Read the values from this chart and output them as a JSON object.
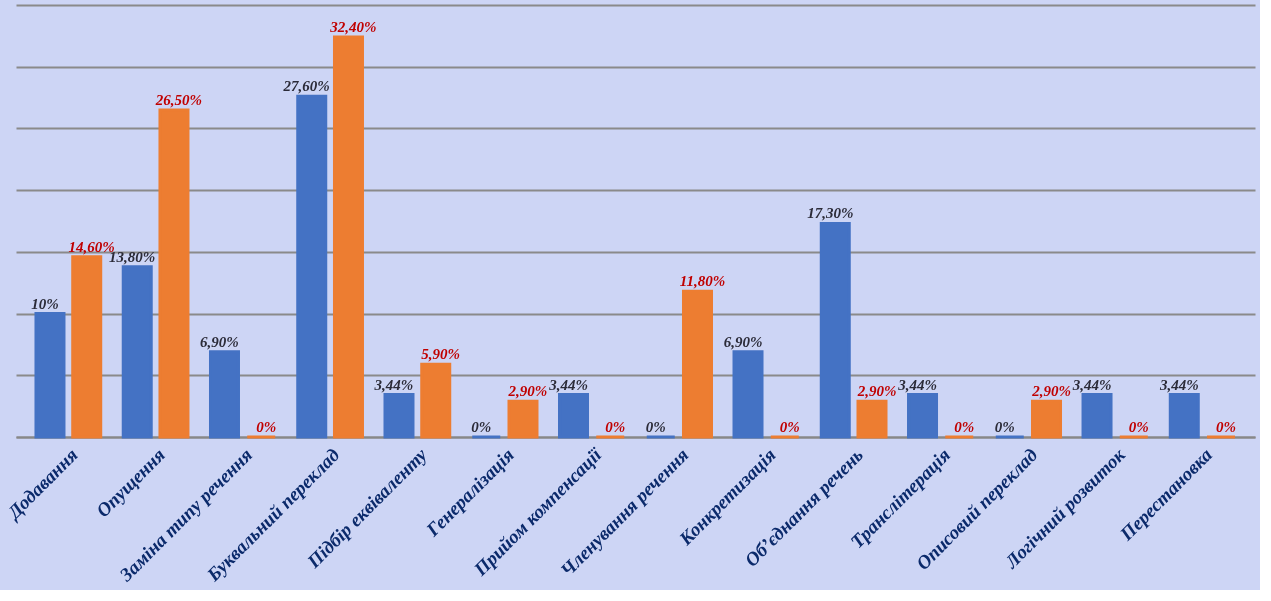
{
  "chart_data": {
    "type": "bar",
    "categories": [
      "Додавання",
      "Опущення",
      "Заміна типу речення",
      "Буквальний переклад",
      "Підбір еквіваленту",
      "Генералізація",
      "Прийом компенсації",
      "Членування речення",
      "Конкретизація",
      "Об’єднання речень",
      "Транслітерація",
      "Описовий переклад",
      "Логічний розвиток",
      "Перестановка"
    ],
    "series": [
      {
        "color": "#4472c4",
        "values": [
          10,
          13.8,
          6.9,
          27.6,
          3.44,
          0,
          3.44,
          0,
          6.9,
          17.3,
          3.44,
          0,
          3.44,
          3.44
        ],
        "value_labels": [
          "10%",
          "13,80%",
          "6,90%",
          "27,60%",
          "3,44%",
          "0%",
          "3,44%",
          "0%",
          "6,90%",
          "17,30%",
          "3,44%",
          "0%",
          "3,44%",
          "3,44%"
        ]
      },
      {
        "color": "#ed7d31",
        "values": [
          14.6,
          26.5,
          0,
          32.4,
          5.9,
          2.9,
          0,
          11.8,
          0,
          2.9,
          0,
          2.9,
          0,
          0
        ],
        "value_labels": [
          "14,60%",
          "26,50%",
          "0%",
          "32,40%",
          "5,90%",
          "2,90%",
          "0%",
          "11,80%",
          "0%",
          "2,90%",
          "0%",
          "2,90%",
          "0%",
          "0%"
        ]
      }
    ],
    "ylim": [
      0,
      35
    ],
    "yticks": [
      {
        "value": 0,
        "label": null
      },
      {
        "value": 5,
        "label": null
      },
      {
        "value": 10,
        "label": null
      },
      {
        "value": 15,
        "label": null
      },
      {
        "value": 20,
        "label": null
      },
      {
        "value": 25,
        "label": null
      },
      {
        "value": 30,
        "label": null
      },
      {
        "value": 35,
        "label": null
      }
    ],
    "grid": "y",
    "tick_labels": "x"
  }
}
